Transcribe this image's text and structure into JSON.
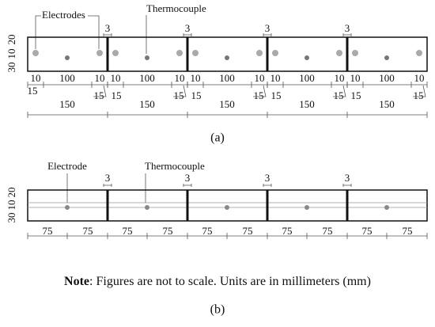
{
  "panel_a": {
    "electrodes_label": "Electrodes",
    "thermocouple_label": "Thermocouple",
    "side_dims": [
      "20",
      "10",
      "30"
    ],
    "gap_labels": [
      "3",
      "3",
      "3",
      "3"
    ],
    "segments": [
      {
        "dims": [
          "10",
          "100",
          "10"
        ],
        "offsets": [
          "15",
          "15"
        ],
        "length": "150"
      },
      {
        "dims": [
          "10",
          "100",
          "10"
        ],
        "offsets": [
          "15",
          "15"
        ],
        "length": "150"
      },
      {
        "dims": [
          "10",
          "100",
          "10"
        ],
        "offsets": [
          "15",
          "15"
        ],
        "length": "150"
      },
      {
        "dims": [
          "10",
          "100",
          "10"
        ],
        "offsets": [
          "15",
          "15"
        ],
        "length": "150"
      },
      {
        "dims": [
          "10",
          "100",
          "10"
        ],
        "offsets": [
          "15",
          "15"
        ],
        "length": "150"
      }
    ],
    "caption": "(a)"
  },
  "panel_b": {
    "electrode_label": "Electrode",
    "thermocouple_label": "Thermocouple",
    "side_dims": [
      "20",
      "10",
      "30"
    ],
    "gap_labels": [
      "3",
      "3",
      "3",
      "3"
    ],
    "segments": [
      {
        "dims": [
          "75",
          "75"
        ]
      },
      {
        "dims": [
          "75",
          "75"
        ]
      },
      {
        "dims": [
          "75",
          "75"
        ]
      },
      {
        "dims": [
          "75",
          "75"
        ]
      },
      {
        "dims": [
          "75",
          "75"
        ]
      }
    ],
    "caption": "(b)"
  },
  "note": {
    "label": "Note",
    "text": ": Figures are not to scale. Units are in millimeters (mm)"
  }
}
